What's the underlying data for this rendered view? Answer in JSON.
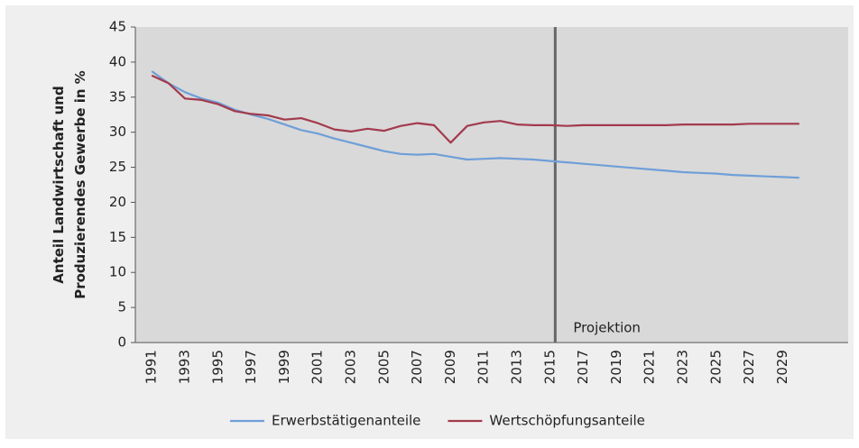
{
  "chart_data": {
    "type": "line",
    "ylabel": [
      "Anteil Landwirtschaft und",
      "Produzierendes Gewerbe in %"
    ],
    "annotation": "Projektion",
    "categories": [
      "1991",
      null,
      "1993",
      null,
      "1995",
      null,
      "1997",
      null,
      "1999",
      null,
      "2001",
      null,
      "2003",
      null,
      "2005",
      null,
      "2007",
      null,
      "2009",
      null,
      "2011",
      null,
      "2013",
      null,
      "2015",
      null,
      "2017",
      null,
      "2019",
      null,
      "2021",
      null,
      "2023",
      null,
      "2025",
      null,
      "2027",
      null,
      "2029",
      null
    ],
    "series": [
      {
        "name": "Erwerbstätigenanteile",
        "color": "#6f9fd8",
        "values": [
          38.7,
          37.0,
          35.7,
          34.8,
          34.2,
          33.2,
          32.5,
          31.9,
          31.1,
          30.3,
          29.8,
          29.1,
          28.5,
          27.9,
          27.3,
          26.9,
          26.8,
          26.9,
          26.5,
          26.1,
          26.2,
          26.3,
          26.2,
          26.1,
          25.9,
          25.7,
          25.5,
          25.3,
          25.1,
          24.9,
          24.7,
          24.5,
          24.3,
          24.2,
          24.1,
          23.9,
          23.8,
          23.7,
          23.6,
          23.5
        ]
      },
      {
        "name": "Wertschöpfungsanteile",
        "color": "#a33a4d",
        "values": [
          38.1,
          37.0,
          34.8,
          34.6,
          34.0,
          33.0,
          32.6,
          32.4,
          31.8,
          32.0,
          31.3,
          30.4,
          30.1,
          30.5,
          30.2,
          30.9,
          31.3,
          31.0,
          28.5,
          30.9,
          31.4,
          31.6,
          31.1,
          31.0,
          31.0,
          30.9,
          31.0,
          31.0,
          31.0,
          31.0,
          31.0,
          31.0,
          31.1,
          31.1,
          31.1,
          31.1,
          31.2,
          31.2,
          31.2,
          31.2
        ]
      }
    ],
    "ylim": [
      0,
      45
    ],
    "yticks": [
      0,
      5,
      10,
      15,
      20,
      25,
      30,
      35,
      40,
      45
    ],
    "grid": false
  }
}
